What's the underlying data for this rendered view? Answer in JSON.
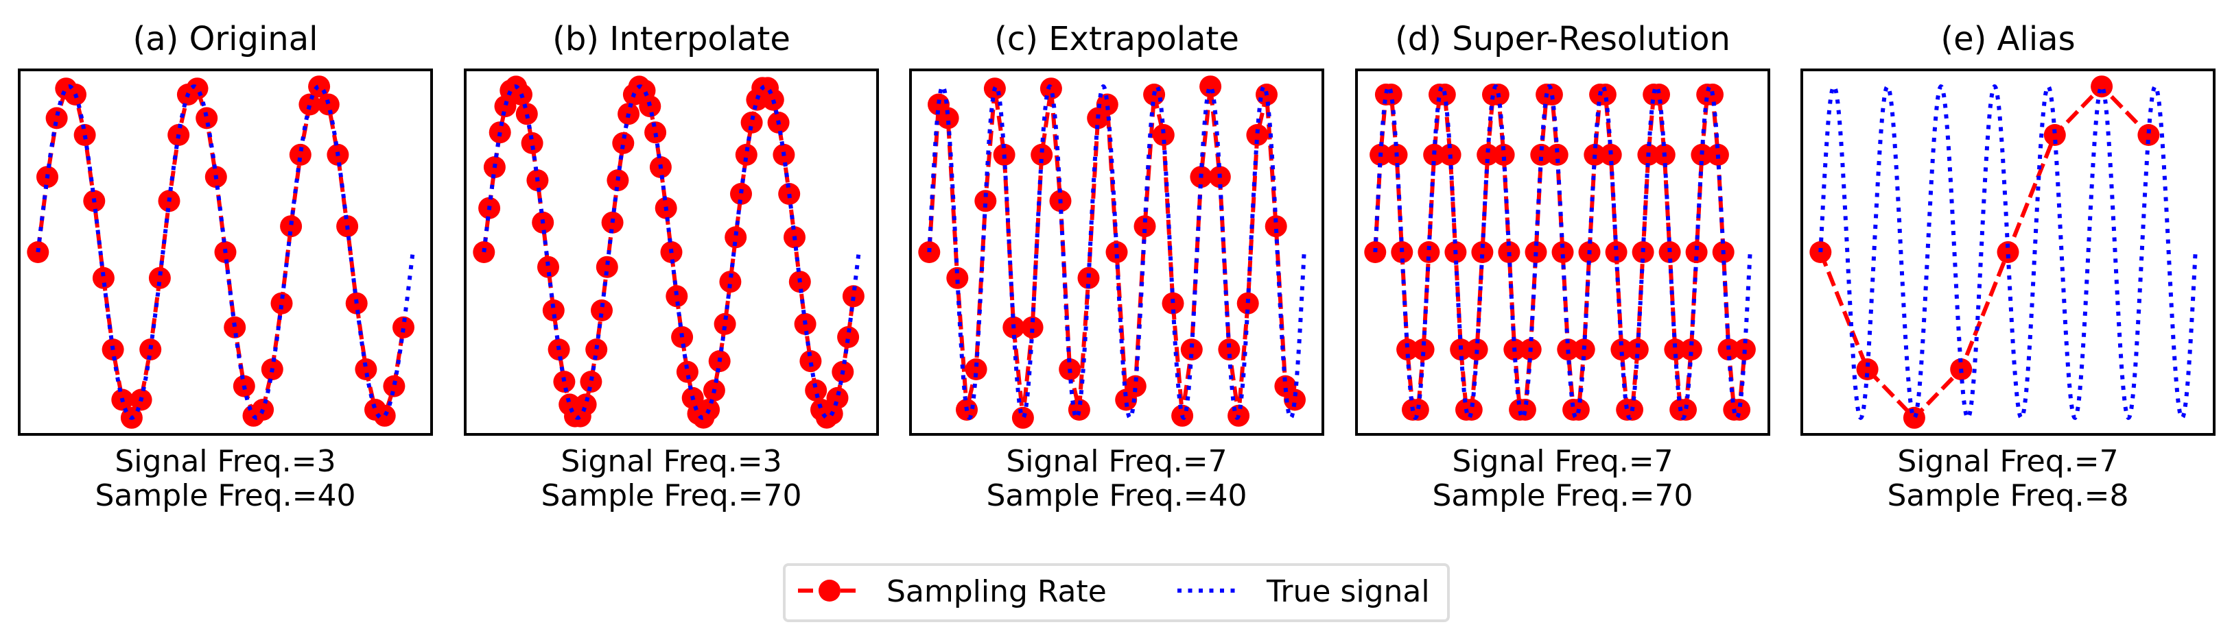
{
  "chart_data": [
    {
      "type": "line",
      "title": "(a) Original",
      "subtitle_lines": [
        "Signal Freq.=3",
        "Sample Freq.=40"
      ],
      "signal_freq": 3,
      "sample_freq": 40,
      "true_signal": "sin(2*pi*3*t), t in [0, 1]",
      "samples_x": "k/40, k=0..39",
      "xlim": [
        -0.05,
        1.05
      ],
      "ylim": [
        -1.1,
        1.1
      ],
      "axes_ticks": false,
      "grid": false,
      "sample_line_style": "dashed"
    },
    {
      "type": "line",
      "title": "(b) Interpolate",
      "subtitle_lines": [
        "Signal Freq.=3",
        "Sample Freq.=70"
      ],
      "signal_freq": 3,
      "sample_freq": 70,
      "true_signal": "sin(2*pi*3*t), t in [0, 1]",
      "samples_x": "k/70, k=0..69",
      "xlim": [
        -0.05,
        1.05
      ],
      "ylim": [
        -1.1,
        1.1
      ],
      "axes_ticks": false,
      "grid": false,
      "sample_line_style": "dashed"
    },
    {
      "type": "line",
      "title": "(c) Extrapolate",
      "subtitle_lines": [
        "Signal Freq.=7",
        "Sample Freq.=40"
      ],
      "signal_freq": 7,
      "sample_freq": 40,
      "true_signal": "sin(2*pi*7*t), t in [0, 1]",
      "samples_x": "k/40, k=0..39",
      "xlim": [
        -0.05,
        1.05
      ],
      "ylim": [
        -1.1,
        1.1
      ],
      "axes_ticks": false,
      "grid": false,
      "sample_line_style": "dashed"
    },
    {
      "type": "line",
      "title": "(d) Super-Resolution",
      "subtitle_lines": [
        "Signal Freq.=7",
        "Sample Freq.=70"
      ],
      "signal_freq": 7,
      "sample_freq": 70,
      "true_signal": "sin(2*pi*7*t), t in [0, 1]",
      "samples_x": "k/70, k=0..69",
      "xlim": [
        -0.05,
        1.05
      ],
      "ylim": [
        -1.1,
        1.1
      ],
      "axes_ticks": false,
      "grid": false,
      "sample_line_style": "dashed"
    },
    {
      "type": "line",
      "title": "(e) Alias",
      "subtitle_lines": [
        "Signal Freq.=7",
        "Sample Freq.=8"
      ],
      "signal_freq": 7,
      "sample_freq": 8,
      "true_signal": "sin(2*pi*7*t), t in [0, 1]",
      "samples_x": [
        0,
        0.125,
        0.25,
        0.375,
        0.5,
        0.625,
        0.75,
        0.875
      ],
      "samples_y": [
        0,
        -0.707,
        -1,
        -0.707,
        0,
        0.707,
        1,
        0.707
      ],
      "xlim": [
        -0.05,
        1.05
      ],
      "ylim": [
        -1.1,
        1.1
      ],
      "axes_ticks": false,
      "grid": false,
      "sample_line_style": "dashed"
    }
  ],
  "legend": {
    "placement": "bottom-center",
    "entries": [
      {
        "label": "Sampling Rate",
        "style": "dashed line with circle marker",
        "color": "#ff0000"
      },
      {
        "label": "True signal",
        "style": "dotted line",
        "color": "#0000ff"
      }
    ]
  },
  "colors": {
    "sampling": "#ff0000",
    "true_signal": "#0000ff",
    "axes": "#000000",
    "legend_border": "#dddddd"
  }
}
